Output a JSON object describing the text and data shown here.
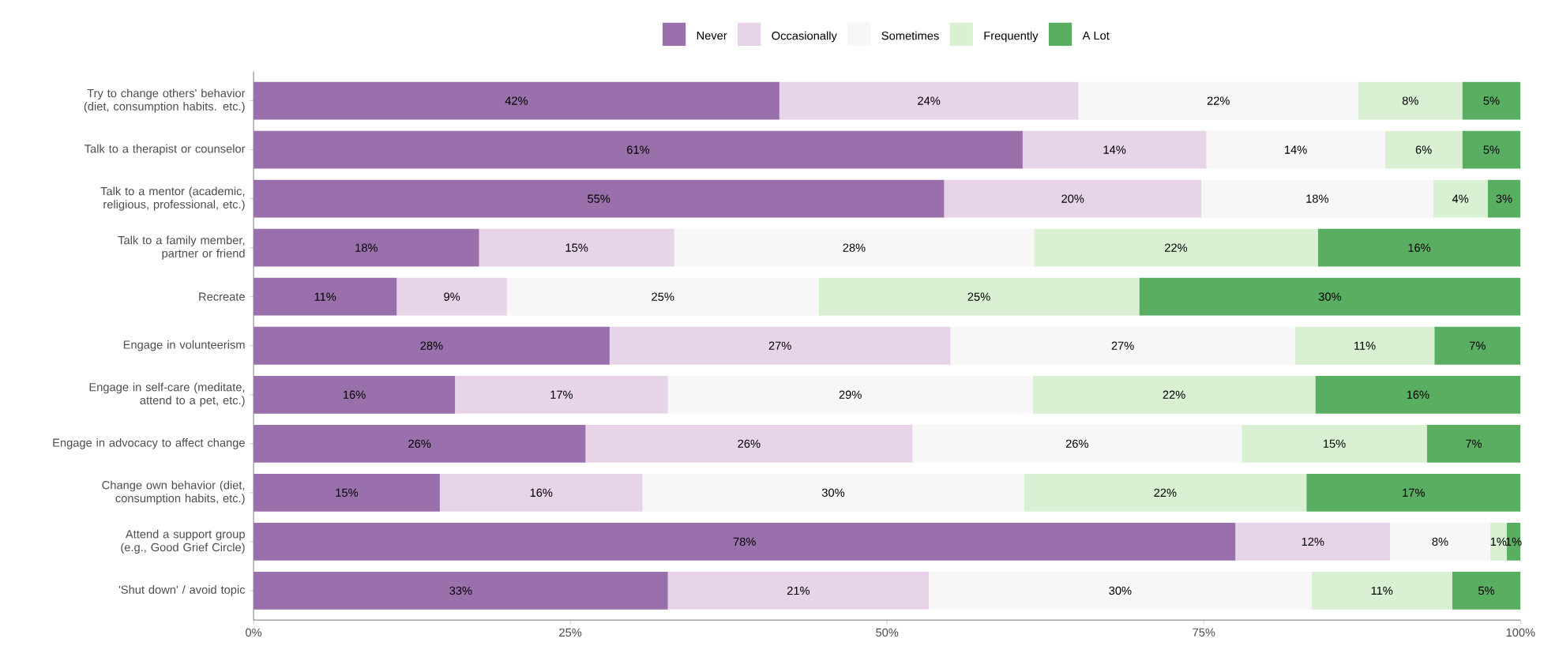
{
  "chart_data": {
    "type": "bar",
    "orientation": "horizontal",
    "stacked": true,
    "legend": "top",
    "categories": [
      "Try to change others' behavior (diet, consumption habits. etc.)",
      "Talk to a therapist or counselor",
      "Talk to a mentor (academic, religious, professional, etc.)",
      "Talk to a family member, partner or friend",
      "Recreate",
      "Engage in volunteerism",
      "Engage in self-care (meditate, attend to a pet, etc.)",
      "Engage in advocacy to affect change",
      "Change own behavior (diet, consumption habits, etc.)",
      "Attend a support group (e.g., Good Grief Circle)",
      "'Shut down' / avoid topic"
    ],
    "xlim": [
      0,
      100
    ],
    "xticks": [
      {
        "value": 0,
        "label": "0%"
      },
      {
        "value": 25,
        "label": "25%"
      },
      {
        "value": 50,
        "label": "50%"
      },
      {
        "value": 75,
        "label": "75%"
      },
      {
        "value": 100,
        "label": "100%"
      }
    ],
    "series": [
      {
        "name": "Never",
        "color": "#9970ab",
        "values": [
          41.5,
          60.7,
          54.5,
          17.8,
          11.3,
          28.1,
          15.9,
          26.2,
          14.7,
          77.5,
          32.7
        ],
        "value_labels": [
          "42%",
          "61%",
          "55%",
          "18%",
          "11%",
          "28%",
          "16%",
          "26%",
          "15%",
          "78%",
          "33%"
        ]
      },
      {
        "name": "Occasionally",
        "color": "#e7d4e8",
        "values": [
          23.6,
          14.5,
          20.3,
          15.4,
          8.7,
          26.9,
          16.8,
          25.8,
          16.0,
          12.2,
          20.6
        ],
        "value_labels": [
          "24%",
          "14%",
          "20%",
          "15%",
          "9%",
          "27%",
          "17%",
          "26%",
          "16%",
          "12%",
          "21%"
        ]
      },
      {
        "name": "Sometimes",
        "color": "#f7f7f7",
        "values": [
          22.1,
          14.1,
          18.3,
          28.4,
          24.6,
          27.2,
          28.8,
          26.0,
          30.1,
          7.9,
          30.2
        ],
        "value_labels": [
          "22%",
          "14%",
          "18%",
          "28%",
          "25%",
          "27%",
          "29%",
          "26%",
          "30%",
          "8%",
          "30%"
        ]
      },
      {
        "name": "Frequently",
        "color": "#d9f0d3",
        "values": [
          8.2,
          6.1,
          4.3,
          22.4,
          25.3,
          11.0,
          22.3,
          14.6,
          22.3,
          1.3,
          11.1
        ],
        "value_labels": [
          "8%",
          "6%",
          "4%",
          "22%",
          "25%",
          "11%",
          "22%",
          "15%",
          "22%",
          "1%",
          "11%"
        ]
      },
      {
        "name": "A Lot",
        "color": "#5aae61",
        "values": [
          4.6,
          4.6,
          2.6,
          16.0,
          30.1,
          6.8,
          16.2,
          7.4,
          16.9,
          1.1,
          5.4
        ],
        "value_labels": [
          "5%",
          "5%",
          "3%",
          "16%",
          "30%",
          "7%",
          "16%",
          "7%",
          "17%",
          "1%",
          "5%"
        ]
      }
    ]
  }
}
